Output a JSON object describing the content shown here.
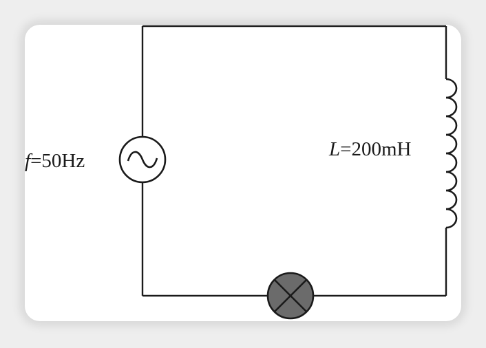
{
  "diagram": {
    "source": {
      "label_symbol": "f",
      "label_rest": "=50Hz"
    },
    "inductor": {
      "label_symbol": "L",
      "label_rest": "=200mH"
    },
    "colors": {
      "wire": "#1a1a1a",
      "lamp_fill": "#6b6b6b",
      "card_background": "#ffffff",
      "page_background": "#eeeeee"
    }
  }
}
